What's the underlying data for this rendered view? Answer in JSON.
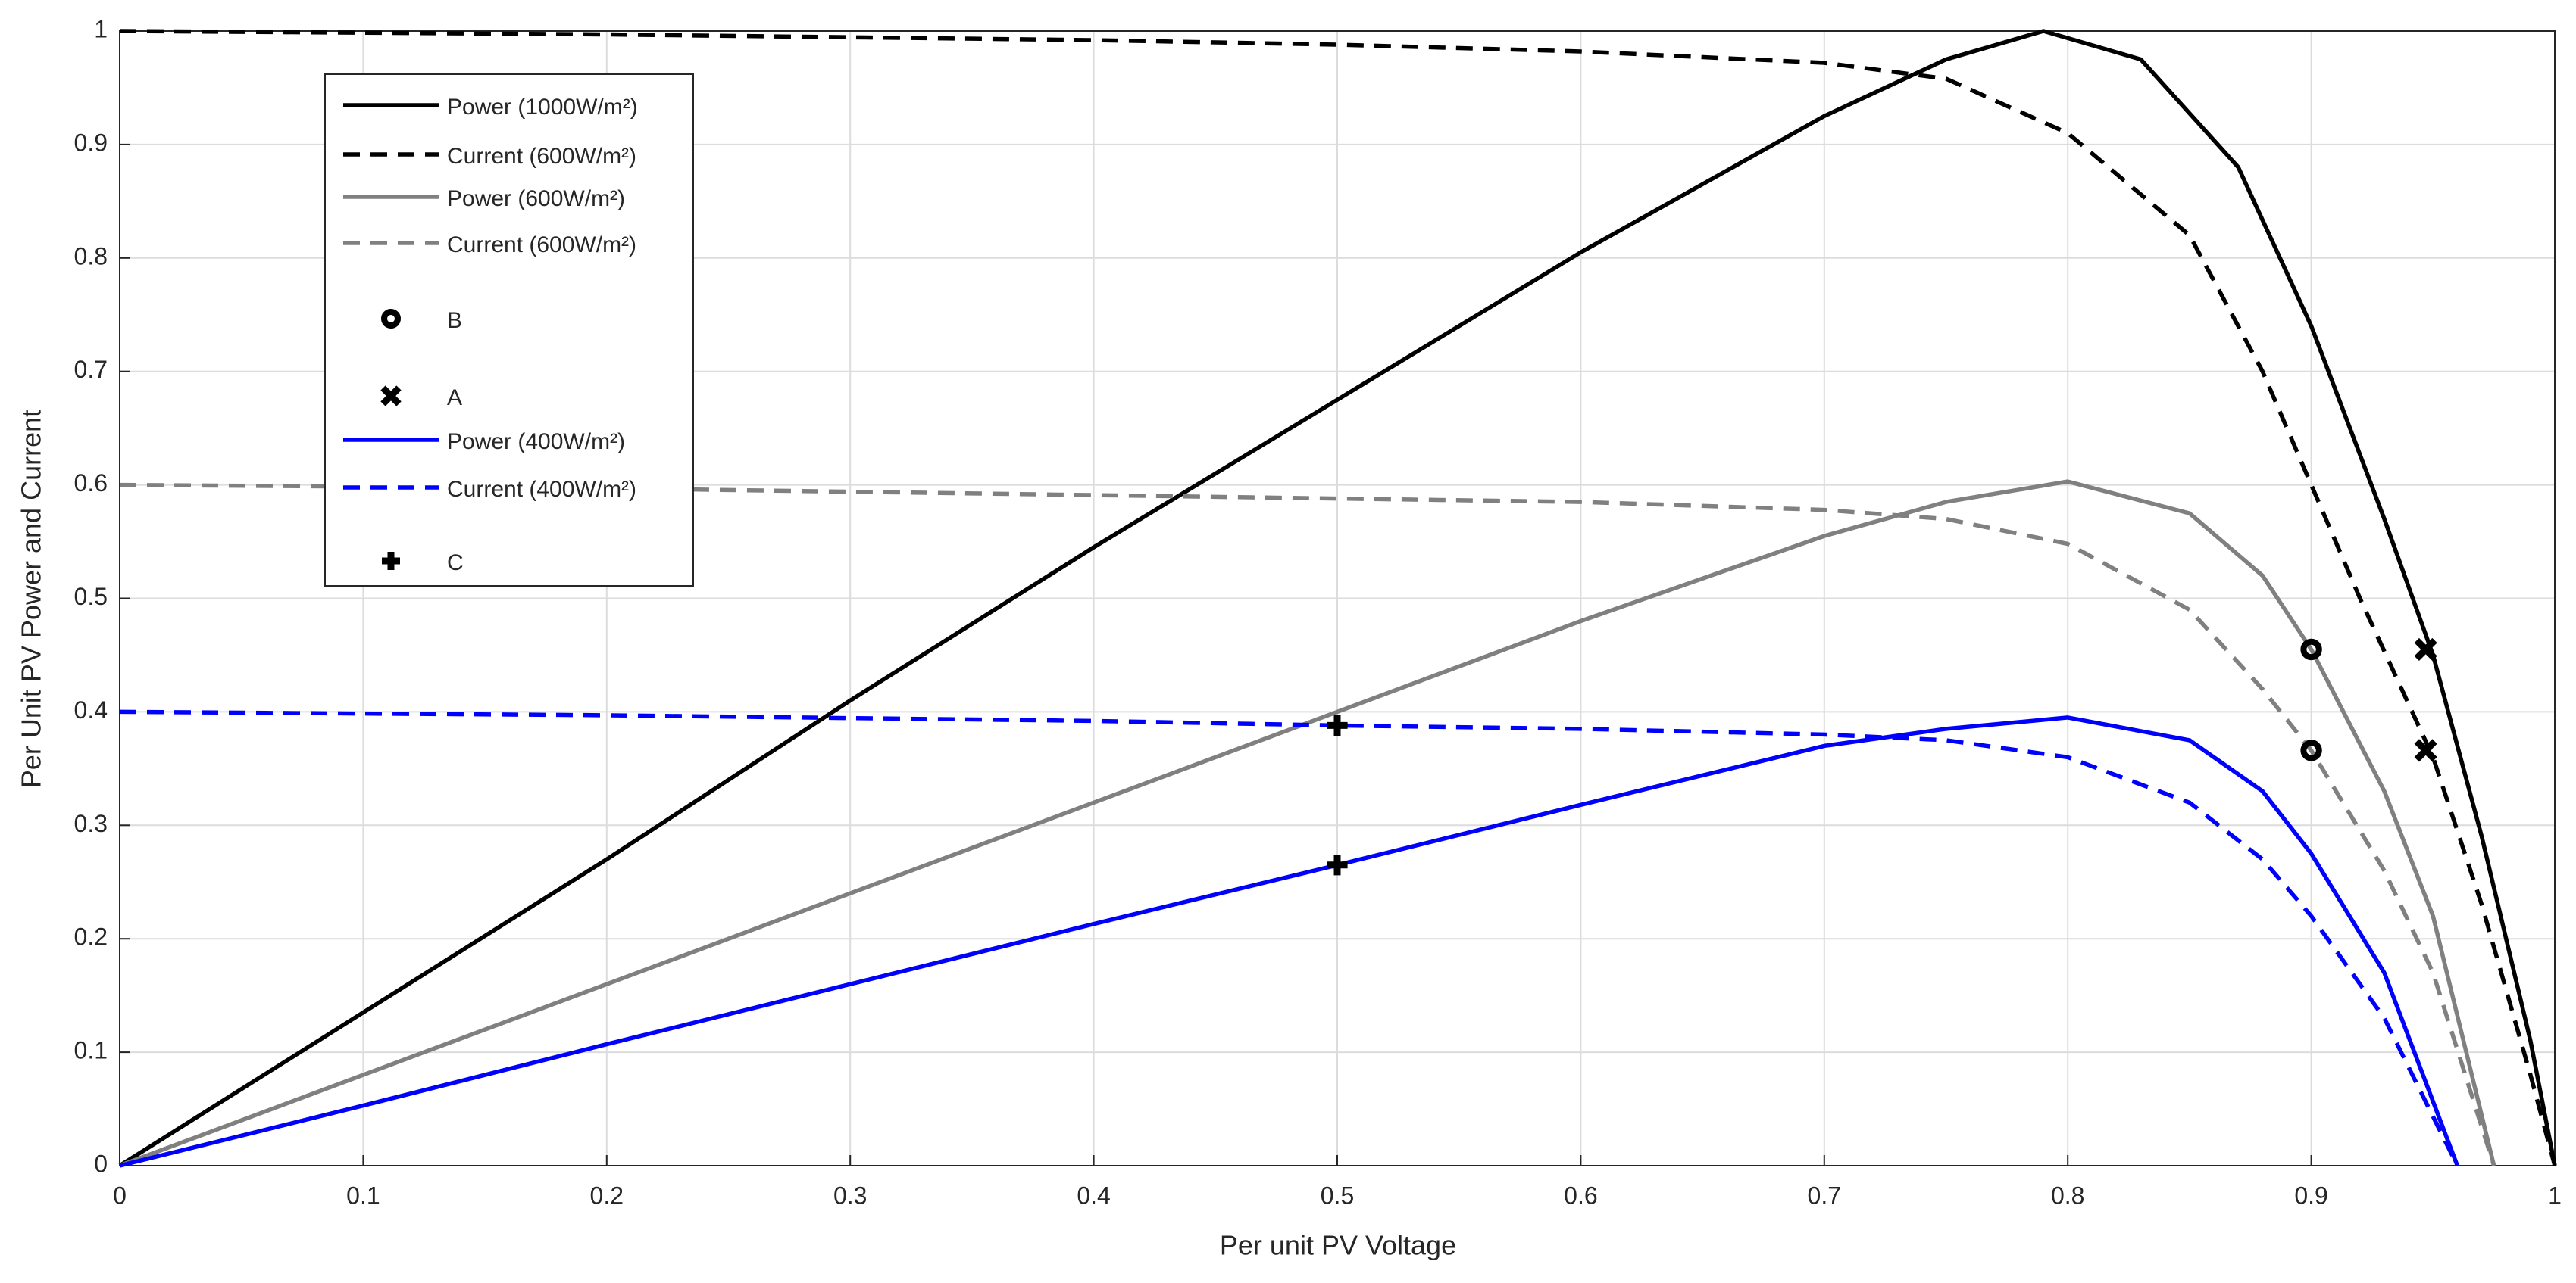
{
  "chart_data": {
    "type": "line",
    "x_label": "Per unit PV Voltage",
    "y_label": "Per Unit PV Power and Current",
    "xlim": [
      0,
      1
    ],
    "ylim": [
      0,
      1
    ],
    "xticks": [
      0,
      0.1,
      0.2,
      0.3,
      0.4,
      0.5,
      0.6,
      0.7,
      0.8,
      0.9,
      1
    ],
    "yticks": [
      0,
      0.1,
      0.2,
      0.3,
      0.4,
      0.5,
      0.6,
      0.7,
      0.8,
      0.9,
      1
    ],
    "grid": true,
    "legend": "upper left",
    "series": [
      {
        "name": "Power (1000W/m²)",
        "color": "#000000",
        "dash": false,
        "x": [
          0,
          0.1,
          0.2,
          0.3,
          0.4,
          0.5,
          0.6,
          0.7,
          0.75,
          0.79,
          0.83,
          0.87,
          0.9,
          0.93,
          0.95,
          0.97,
          0.99,
          1.0
        ],
        "values": [
          0,
          0.135,
          0.27,
          0.41,
          0.545,
          0.675,
          0.805,
          0.925,
          0.975,
          1.0,
          0.975,
          0.88,
          0.74,
          0.57,
          0.45,
          0.29,
          0.11,
          0
        ]
      },
      {
        "name": "Current (600W/m²)",
        "color": "#000000",
        "dash": true,
        "x": [
          0,
          0.2,
          0.4,
          0.5,
          0.6,
          0.7,
          0.75,
          0.8,
          0.85,
          0.88,
          0.9,
          0.92,
          0.95,
          0.97,
          0.99,
          1.0
        ],
        "values": [
          1,
          0.997,
          0.992,
          0.988,
          0.982,
          0.972,
          0.958,
          0.91,
          0.82,
          0.7,
          0.6,
          0.5,
          0.36,
          0.23,
          0.08,
          0
        ]
      },
      {
        "name": "Power (600W/m²)",
        "color": "#808080",
        "dash": false,
        "x": [
          0,
          0.1,
          0.2,
          0.3,
          0.4,
          0.5,
          0.6,
          0.7,
          0.75,
          0.8,
          0.85,
          0.88,
          0.9,
          0.93,
          0.95,
          0.975
        ],
        "values": [
          0,
          0.08,
          0.16,
          0.24,
          0.32,
          0.4,
          0.48,
          0.555,
          0.585,
          0.603,
          0.575,
          0.52,
          0.455,
          0.33,
          0.22,
          0
        ]
      },
      {
        "name": "Current (600W/m²)",
        "color": "#808080",
        "dash": true,
        "x": [
          0,
          0.2,
          0.4,
          0.5,
          0.6,
          0.7,
          0.75,
          0.8,
          0.85,
          0.88,
          0.9,
          0.93,
          0.95,
          0.975
        ],
        "values": [
          0.6,
          0.597,
          0.591,
          0.588,
          0.585,
          0.578,
          0.57,
          0.548,
          0.49,
          0.42,
          0.366,
          0.26,
          0.17,
          0
        ]
      },
      {
        "name": "B",
        "color": "#000000",
        "marker": "circle",
        "x": [
          0.9,
          0.9
        ],
        "values": [
          0.455,
          0.366
        ]
      },
      {
        "name": "A",
        "color": "#000000",
        "marker": "x",
        "x": [
          0.947,
          0.947
        ],
        "values": [
          0.455,
          0.366
        ]
      },
      {
        "name": "Power (400W/m²)",
        "color": "#0000ff",
        "dash": false,
        "x": [
          0,
          0.1,
          0.2,
          0.3,
          0.4,
          0.5,
          0.6,
          0.7,
          0.75,
          0.8,
          0.85,
          0.88,
          0.9,
          0.93,
          0.96
        ],
        "values": [
          0,
          0.053,
          0.107,
          0.16,
          0.213,
          0.265,
          0.318,
          0.37,
          0.385,
          0.395,
          0.375,
          0.33,
          0.275,
          0.17,
          0
        ]
      },
      {
        "name": "Current (400W/m²)",
        "color": "#0000ff",
        "dash": true,
        "x": [
          0,
          0.2,
          0.4,
          0.5,
          0.6,
          0.7,
          0.75,
          0.8,
          0.85,
          0.88,
          0.9,
          0.93,
          0.96
        ],
        "values": [
          0.4,
          0.397,
          0.392,
          0.388,
          0.385,
          0.38,
          0.375,
          0.36,
          0.32,
          0.27,
          0.22,
          0.13,
          0
        ]
      },
      {
        "name": "C",
        "color": "#000000",
        "marker": "plus",
        "x": [
          0.5,
          0.5
        ],
        "values": [
          0.388,
          0.265
        ]
      }
    ]
  }
}
